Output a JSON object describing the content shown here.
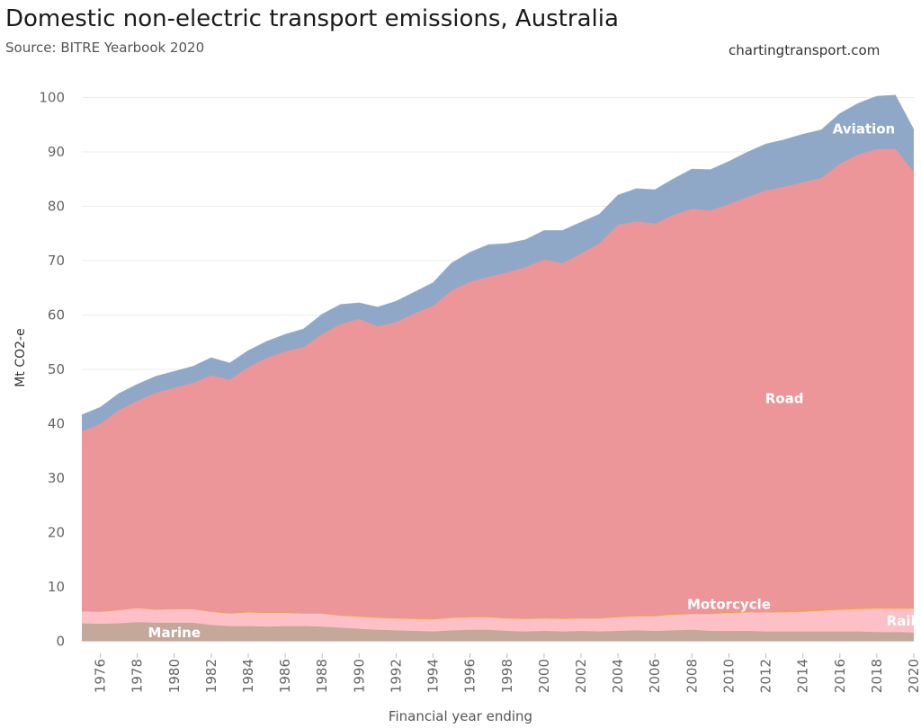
{
  "header": {
    "title": "Domestic non-electric transport emissions, Australia",
    "subtitle": "Source: BITRE Yearbook 2020",
    "site": "chartingtransport.com"
  },
  "chart_data": {
    "type": "area",
    "stacked": true,
    "title": "Domestic non-electric transport emissions, Australia",
    "subtitle": "Source: BITRE Yearbook 2020",
    "xlabel": "Financial year ending",
    "ylabel": "Mt CO2-e",
    "ylim": [
      0,
      100
    ],
    "yticks": [
      0,
      10,
      20,
      30,
      40,
      50,
      60,
      70,
      80,
      90,
      100
    ],
    "xticks": [
      1976,
      1978,
      1980,
      1982,
      1984,
      1986,
      1988,
      1990,
      1992,
      1994,
      1996,
      1998,
      2000,
      2002,
      2004,
      2006,
      2008,
      2010,
      2012,
      2014,
      2016,
      2018,
      2020
    ],
    "grid": true,
    "x": [
      1975,
      1976,
      1977,
      1978,
      1979,
      1980,
      1981,
      1982,
      1983,
      1984,
      1985,
      1986,
      1987,
      1988,
      1989,
      1990,
      1991,
      1992,
      1993,
      1994,
      1995,
      1996,
      1997,
      1998,
      1999,
      2000,
      2001,
      2002,
      2003,
      2004,
      2005,
      2006,
      2007,
      2008,
      2009,
      2010,
      2011,
      2012,
      2013,
      2014,
      2015,
      2016,
      2017,
      2018,
      2019,
      2020
    ],
    "series": [
      {
        "name": "Marine",
        "color": "#c4a89a",
        "values": [
          3.3,
          3.2,
          3.3,
          3.5,
          3.4,
          3.4,
          3.4,
          3.0,
          2.8,
          2.8,
          2.7,
          2.8,
          2.8,
          2.7,
          2.5,
          2.3,
          2.1,
          2.0,
          1.9,
          1.8,
          2.0,
          2.1,
          2.1,
          1.9,
          1.8,
          1.9,
          1.8,
          1.9,
          1.8,
          1.9,
          2.0,
          1.9,
          2.0,
          2.1,
          1.9,
          1.9,
          1.9,
          1.8,
          1.8,
          1.8,
          1.8,
          1.8,
          1.8,
          1.7,
          1.7,
          1.6
        ]
      },
      {
        "name": "Rail",
        "color": "#fcc0c6",
        "values": [
          2.2,
          2.2,
          2.4,
          2.6,
          2.4,
          2.5,
          2.5,
          2.4,
          2.3,
          2.5,
          2.5,
          2.4,
          2.3,
          2.4,
          2.2,
          2.2,
          2.2,
          2.2,
          2.2,
          2.2,
          2.3,
          2.3,
          2.3,
          2.3,
          2.3,
          2.3,
          2.3,
          2.3,
          2.4,
          2.5,
          2.6,
          2.7,
          2.9,
          2.9,
          3.1,
          3.3,
          3.4,
          3.5,
          3.5,
          3.6,
          3.8,
          4.0,
          4.1,
          4.3,
          4.3,
          4.4
        ]
      },
      {
        "name": "Motorcycle",
        "color": "#f0a050",
        "values": [
          0.1,
          0.1,
          0.1,
          0.1,
          0.1,
          0.1,
          0.1,
          0.1,
          0.1,
          0.1,
          0.1,
          0.1,
          0.1,
          0.1,
          0.1,
          0.2,
          0.2,
          0.2,
          0.2,
          0.2,
          0.2,
          0.2,
          0.2,
          0.2,
          0.2,
          0.2,
          0.2,
          0.2,
          0.2,
          0.2,
          0.2,
          0.2,
          0.2,
          0.2,
          0.2,
          0.2,
          0.2,
          0.2,
          0.3,
          0.3,
          0.3,
          0.3,
          0.3,
          0.3,
          0.3,
          0.3
        ]
      },
      {
        "name": "Road",
        "color": "#ec9699",
        "values": [
          33.0,
          34.5,
          36.7,
          38.0,
          39.8,
          40.6,
          41.5,
          43.4,
          42.9,
          45.0,
          46.8,
          48.0,
          48.9,
          51.3,
          53.5,
          54.6,
          53.4,
          54.3,
          56.0,
          57.5,
          60.0,
          61.5,
          62.4,
          63.4,
          64.5,
          65.8,
          65.2,
          66.9,
          68.8,
          72.0,
          72.4,
          72.0,
          73.3,
          74.3,
          74.0,
          75.0,
          76.2,
          77.4,
          78.0,
          78.7,
          79.3,
          81.7,
          83.3,
          84.2,
          84.3,
          80.0
        ]
      },
      {
        "name": "Aviation",
        "color": "#8fa8c8",
        "values": [
          3.0,
          3.0,
          3.0,
          3.0,
          3.0,
          3.0,
          3.0,
          3.2,
          3.0,
          3.0,
          3.0,
          3.1,
          3.3,
          3.6,
          3.6,
          2.9,
          3.5,
          3.8,
          3.9,
          4.2,
          5.0,
          5.4,
          5.9,
          5.3,
          5.0,
          5.3,
          6.0,
          5.7,
          5.3,
          5.4,
          6.0,
          6.2,
          6.6,
          7.3,
          7.5,
          7.8,
          8.2,
          8.5,
          8.6,
          8.8,
          8.8,
          9.2,
          9.4,
          9.7,
          9.8,
          7.7
        ]
      }
    ]
  }
}
